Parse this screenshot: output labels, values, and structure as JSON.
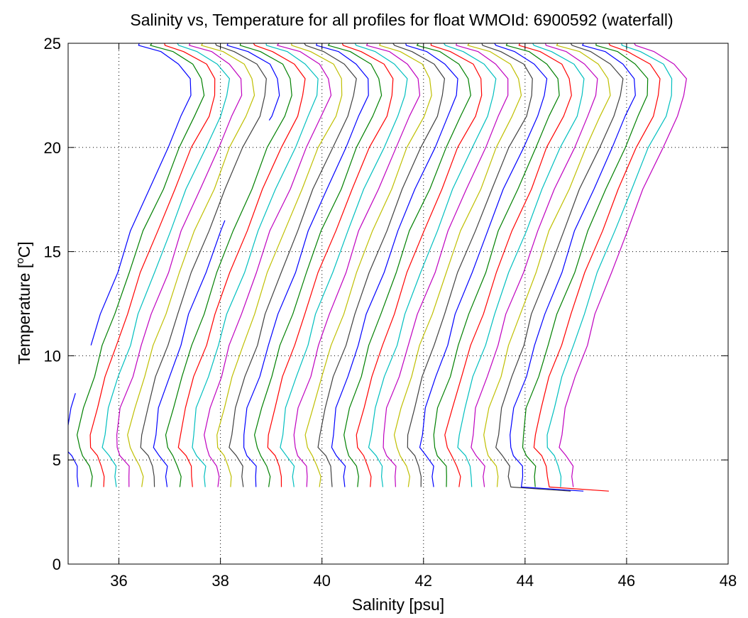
{
  "chart_data": {
    "type": "line",
    "title": "Salinity vs, Temperature for all profiles for float WMOId: 6900592 (waterfall)",
    "xlabel": "Salinity [psu]",
    "ylabel_main": "Temperature [",
    "ylabel_sup": "o",
    "ylabel_end": "C]",
    "xlim": [
      35,
      48
    ],
    "ylim": [
      0,
      25
    ],
    "xticks": [
      36,
      38,
      40,
      42,
      44,
      46,
      48
    ],
    "yticks": [
      0,
      5,
      10,
      15,
      20,
      25
    ],
    "grid": true,
    "color_cycle": [
      "#0000ff",
      "#008000",
      "#ff0000",
      "#00bfbf",
      "#bf00bf",
      "#bfbf00",
      "#404040"
    ],
    "waterfall_step": 0.25,
    "profile_shape": [
      [
        0.0,
        3.7
      ],
      [
        0.0,
        4.2
      ],
      [
        -0.02,
        4.7
      ],
      [
        -0.15,
        5.2
      ],
      [
        -0.25,
        5.6
      ],
      [
        -0.25,
        6.2
      ],
      [
        -0.15,
        7.5
      ],
      [
        0.05,
        9.0
      ],
      [
        0.25,
        10.5
      ],
      [
        0.45,
        12.0
      ],
      [
        0.75,
        14.0
      ],
      [
        1.05,
        16.0
      ],
      [
        1.4,
        18.0
      ],
      [
        1.75,
        20.0
      ],
      [
        2.05,
        21.5
      ],
      [
        2.2,
        22.5
      ],
      [
        2.2,
        23.3
      ],
      [
        2.0,
        24.0
      ],
      [
        1.6,
        24.6
      ],
      [
        1.2,
        24.9
      ]
    ],
    "series": [
      {
        "offset": 0.0,
        "t_start": 3.7,
        "t_end": 8.2,
        "color": "#0000ff"
      },
      {
        "offset": 0.0,
        "t_start": 10.5,
        "t_end": 25.0,
        "color": "#0000ff"
      },
      {
        "offset": 0.25,
        "t_start": 3.7,
        "t_end": 25.0,
        "color": "#008000"
      },
      {
        "offset": 0.5,
        "t_start": 3.7,
        "t_end": 25.0,
        "color": "#ff0000"
      },
      {
        "offset": 0.75,
        "t_start": 3.7,
        "t_end": 25.0,
        "color": "#00bfbf"
      },
      {
        "offset": 1.0,
        "t_start": 3.7,
        "t_end": 25.0,
        "color": "#bf00bf"
      },
      {
        "offset": 1.25,
        "t_start": 3.7,
        "t_end": 25.0,
        "color": "#bfbf00"
      },
      {
        "offset": 1.5,
        "t_start": 3.7,
        "t_end": 25.0,
        "color": "#404040"
      },
      {
        "offset": 1.75,
        "t_start": 3.7,
        "t_end": 16.5,
        "color": "#0000ff"
      },
      {
        "offset": 1.75,
        "t_start": 21.3,
        "t_end": 25.0,
        "color": "#0000ff"
      },
      {
        "offset": 2.0,
        "t_start": 3.7,
        "t_end": 25.0,
        "color": "#008000"
      },
      {
        "offset": 2.25,
        "t_start": 3.7,
        "t_end": 25.0,
        "color": "#ff0000"
      },
      {
        "offset": 2.5,
        "t_start": 3.7,
        "t_end": 25.0,
        "color": "#00bfbf"
      },
      {
        "offset": 2.75,
        "t_start": 3.7,
        "t_end": 25.0,
        "color": "#bf00bf"
      },
      {
        "offset": 3.0,
        "t_start": 3.7,
        "t_end": 25.0,
        "color": "#bfbf00"
      },
      {
        "offset": 3.25,
        "t_start": 3.7,
        "t_end": 25.0,
        "color": "#404040"
      },
      {
        "offset": 3.5,
        "t_start": 3.7,
        "t_end": 25.0,
        "color": "#0000ff"
      },
      {
        "offset": 3.75,
        "t_start": 3.7,
        "t_end": 25.0,
        "color": "#008000"
      },
      {
        "offset": 4.0,
        "t_start": 3.7,
        "t_end": 25.0,
        "color": "#ff0000"
      },
      {
        "offset": 4.25,
        "t_start": 3.7,
        "t_end": 25.0,
        "color": "#00bfbf"
      },
      {
        "offset": 4.5,
        "t_start": 3.7,
        "t_end": 25.0,
        "color": "#bf00bf"
      },
      {
        "offset": 4.75,
        "t_start": 3.7,
        "t_end": 25.0,
        "color": "#bfbf00"
      },
      {
        "offset": 5.0,
        "t_start": 3.7,
        "t_end": 25.0,
        "color": "#404040"
      },
      {
        "offset": 5.25,
        "t_start": 3.7,
        "t_end": 25.0,
        "color": "#0000ff"
      },
      {
        "offset": 5.5,
        "t_start": 3.7,
        "t_end": 25.0,
        "color": "#008000"
      },
      {
        "offset": 5.75,
        "t_start": 3.7,
        "t_end": 25.0,
        "color": "#ff0000"
      },
      {
        "offset": 6.0,
        "t_start": 3.7,
        "t_end": 25.0,
        "color": "#00bfbf"
      },
      {
        "offset": 6.25,
        "t_start": 3.7,
        "t_end": 25.0,
        "color": "#bf00bf"
      },
      {
        "offset": 6.5,
        "t_start": 3.7,
        "t_end": 25.0,
        "color": "#bfbf00"
      },
      {
        "offset": 6.75,
        "t_start": 3.7,
        "t_end": 25.0,
        "color": "#404040"
      },
      {
        "offset": 7.0,
        "t_start": 3.7,
        "t_end": 25.0,
        "color": "#0000ff"
      },
      {
        "offset": 7.25,
        "t_start": 3.7,
        "t_end": 25.0,
        "color": "#008000"
      },
      {
        "offset": 7.5,
        "t_start": 3.7,
        "t_end": 25.0,
        "color": "#ff0000"
      },
      {
        "offset": 7.75,
        "t_start": 3.7,
        "t_end": 25.0,
        "color": "#00bfbf"
      },
      {
        "offset": 8.0,
        "t_start": 3.7,
        "t_end": 25.0,
        "color": "#bf00bf"
      },
      {
        "offset": 8.25,
        "t_start": 3.7,
        "t_end": 25.0,
        "color": "#bfbf00"
      },
      {
        "offset": 8.5,
        "t_start": 3.5,
        "t_end": 25.0,
        "color": "#404040"
      },
      {
        "offset": 8.75,
        "t_start": 3.5,
        "t_end": 25.0,
        "color": "#0000ff"
      },
      {
        "offset": 9.0,
        "t_start": 3.7,
        "t_end": 25.0,
        "color": "#008000"
      },
      {
        "offset": 9.25,
        "t_start": 3.5,
        "t_end": 25.0,
        "color": "#ff0000"
      },
      {
        "offset": 9.5,
        "t_start": 3.7,
        "t_end": 25.0,
        "color": "#00bfbf"
      },
      {
        "offset": 9.75,
        "t_start": 3.7,
        "t_end": 25.0,
        "color": "#bf00bf"
      }
    ]
  }
}
